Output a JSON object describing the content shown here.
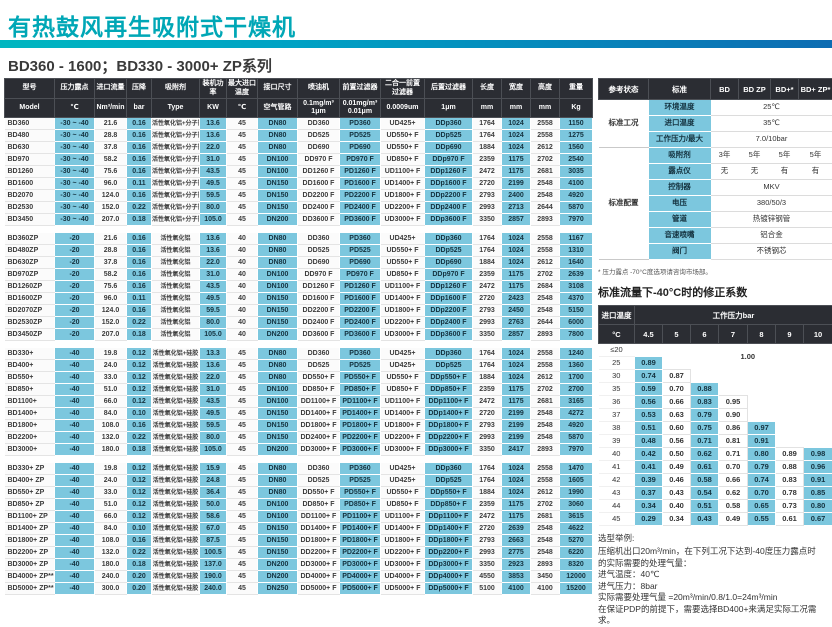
{
  "title": "有热鼓风再生吸附式干燥机",
  "subtitle": "BD360 - 1600；BD330 - 3000+ ZP系列",
  "colors": {
    "accent_teal": "#00a7b6",
    "header_dark": "#2b2d33",
    "cell_blue": "#7cc7de"
  },
  "spec_table": {
    "headers": [
      "型号",
      "压力露点",
      "进口流量",
      "压降",
      "吸附剂",
      "装机功率",
      "最大进口温度",
      "接口尺寸",
      "喷油机",
      "前置过滤器",
      "二合一前置过滤器",
      "后置过滤器",
      "长度",
      "宽度",
      "高度",
      "重量"
    ],
    "units": [
      "Model",
      "℃",
      "Nm³/min",
      "bar",
      "Type",
      "KW",
      "℃",
      "空气管路",
      "0.1mg/m³\n1μm",
      "0.01mg/m³\n0.01μm",
      "0.0009um",
      "1μm",
      "mm",
      "mm",
      "mm",
      "Kg"
    ],
    "groups": [
      {
        "name": "BD",
        "rows": [
          [
            "BD360",
            "-30 ~ -40",
            "21.6",
            "0.16",
            "活性氧化铝+分子筛",
            "13.6",
            "45",
            "DN80",
            "DD360",
            "PD360",
            "UD425+",
            "DDp360",
            "1764",
            "1024",
            "2558",
            "1150"
          ],
          [
            "BD480",
            "-30 ~ -40",
            "28.8",
            "0.16",
            "活性氧化铝+分子筛",
            "13.6",
            "45",
            "DN80",
            "DD525",
            "PD525",
            "UD550+ F",
            "DDp525",
            "1764",
            "1024",
            "2558",
            "1275"
          ],
          [
            "BD630",
            "-30 ~ -40",
            "37.8",
            "0.16",
            "活性氧化铝+分子筛",
            "22.0",
            "45",
            "DN80",
            "DD690",
            "PD690",
            "UD550+ F",
            "DDp690",
            "1884",
            "1024",
            "2612",
            "1560"
          ],
          [
            "BD970",
            "-30 ~ -40",
            "58.2",
            "0.16",
            "活性氧化铝+分子筛",
            "31.0",
            "45",
            "DN100",
            "DD970 F",
            "PD970 F",
            "UD850+ F",
            "DDp970 F",
            "2359",
            "1175",
            "2702",
            "2540"
          ],
          [
            "BD1260",
            "-30 ~ -40",
            "75.6",
            "0.16",
            "活性氧化铝+分子筛",
            "43.5",
            "45",
            "DN100",
            "DD1260 F",
            "PD1260 F",
            "UD1100+ F",
            "DDp1260 F",
            "2472",
            "1175",
            "2681",
            "3035"
          ],
          [
            "BD1600",
            "-30 ~ -40",
            "96.0",
            "0.11",
            "活性氧化铝+分子筛",
            "49.5",
            "45",
            "DN150",
            "DD1600 F",
            "PD1600 F",
            "UD1400+ F",
            "DDp1600 F",
            "2720",
            "2199",
            "2548",
            "4100"
          ],
          [
            "BD2070",
            "-30 ~ -40",
            "124.0",
            "0.16",
            "活性氧化铝+分子筛",
            "59.5",
            "45",
            "DN150",
            "DD2200 F",
            "PD2200 F",
            "UD1800+ F",
            "DDp2200 F",
            "2793",
            "2400",
            "2548",
            "4920"
          ],
          [
            "BD2530",
            "-30 ~ -40",
            "152.0",
            "0.22",
            "活性氧化铝+分子筛",
            "80.0",
            "45",
            "DN150",
            "DD2400 F",
            "PD2400 F",
            "UD2200+ F",
            "DDp2400 F",
            "2993",
            "2713",
            "2644",
            "5870"
          ],
          [
            "BD3450",
            "-30 ~ -40",
            "207.0",
            "0.18",
            "活性氧化铝+分子筛",
            "105.0",
            "45",
            "DN200",
            "DD3600 F",
            "PD3600 F",
            "UD3000+ F",
            "DDp3600 F",
            "3350",
            "2857",
            "2893",
            "7970"
          ]
        ]
      },
      {
        "name": "BD ZP",
        "rows": [
          [
            "BD360ZP",
            "-20",
            "21.6",
            "0.16",
            "活性氧化铝",
            "13.6",
            "40",
            "DN80",
            "DD360",
            "PD360",
            "UD425+",
            "DDp360",
            "1764",
            "1024",
            "2558",
            "1167"
          ],
          [
            "BD480ZP",
            "-20",
            "28.8",
            "0.16",
            "活性氧化铝",
            "13.6",
            "40",
            "DN80",
            "DD525",
            "PD525",
            "UD550+ F",
            "DDp525",
            "1764",
            "1024",
            "2558",
            "1310"
          ],
          [
            "BD630ZP",
            "-20",
            "37.8",
            "0.16",
            "活性氧化铝",
            "22.0",
            "40",
            "DN80",
            "DD690",
            "PD690",
            "UD550+ F",
            "DDp690",
            "1884",
            "1024",
            "2612",
            "1640"
          ],
          [
            "BD970ZP",
            "-20",
            "58.2",
            "0.16",
            "活性氧化铝",
            "31.0",
            "40",
            "DN100",
            "DD970 F",
            "PD970 F",
            "UD850+ F",
            "DDp970 F",
            "2359",
            "1175",
            "2702",
            "2639"
          ],
          [
            "BD1260ZP",
            "-20",
            "75.6",
            "0.16",
            "活性氧化铝",
            "43.5",
            "40",
            "DN100",
            "DD1260 F",
            "PD1260 F",
            "UD1100+ F",
            "DDp1260 F",
            "2472",
            "1175",
            "2684",
            "3108"
          ],
          [
            "BD1600ZP",
            "-20",
            "96.0",
            "0.11",
            "活性氧化铝",
            "49.5",
            "40",
            "DN150",
            "DD1600 F",
            "PD1600 F",
            "UD1400+ F",
            "DDp1600 F",
            "2720",
            "2423",
            "2548",
            "4370"
          ],
          [
            "BD2070ZP",
            "-20",
            "124.0",
            "0.16",
            "活性氧化铝",
            "59.5",
            "40",
            "DN150",
            "DD2200 F",
            "PD2200 F",
            "UD1800+ F",
            "DDp2200 F",
            "2793",
            "2450",
            "2548",
            "5150"
          ],
          [
            "BD2530ZP",
            "-20",
            "152.0",
            "0.22",
            "活性氧化铝",
            "80.0",
            "40",
            "DN150",
            "DD2400 F",
            "PD2400 F",
            "UD2200+ F",
            "DDp2400 F",
            "2993",
            "2763",
            "2644",
            "6000"
          ],
          [
            "BD3450ZP",
            "-20",
            "207.0",
            "0.18",
            "活性氧化铝",
            "105.0",
            "40",
            "DN200",
            "DD3600 F",
            "PD3600 F",
            "UD3000+ F",
            "DDp3600 F",
            "3350",
            "2857",
            "2893",
            "7800"
          ]
        ]
      },
      {
        "name": "BD+",
        "rows": [
          [
            "BD330+",
            "-40",
            "19.8",
            "0.12",
            "活性氧化铝+硅胶",
            "13.3",
            "45",
            "DN80",
            "DD360",
            "PD360",
            "UD425+",
            "DDp360",
            "1764",
            "1024",
            "2558",
            "1240"
          ],
          [
            "BD400+",
            "-40",
            "24.0",
            "0.12",
            "活性氧化铝+硅胶",
            "13.6",
            "45",
            "DN80",
            "DD525",
            "PD525",
            "UD425+",
            "DDp525",
            "1764",
            "1024",
            "2558",
            "1360"
          ],
          [
            "BD550+",
            "-40",
            "33.0",
            "0.12",
            "活性氧化铝+硅胶",
            "22.0",
            "45",
            "DN80",
            "DD550+ F",
            "PD550+ F",
            "UD550+ F",
            "DDp550+ F",
            "1884",
            "1024",
            "2612",
            "1700"
          ],
          [
            "BD850+",
            "-40",
            "51.0",
            "0.12",
            "活性氧化铝+硅胶",
            "31.0",
            "45",
            "DN100",
            "DD850+ F",
            "PD850+ F",
            "UD850+ F",
            "DDp850+ F",
            "2359",
            "1175",
            "2702",
            "2700"
          ],
          [
            "BD1100+",
            "-40",
            "66.0",
            "0.12",
            "活性氧化铝+硅胶",
            "43.5",
            "45",
            "DN100",
            "DD1100+ F",
            "PD1100+ F",
            "UD1100+ F",
            "DDp1100+ F",
            "2472",
            "1175",
            "2681",
            "3165"
          ],
          [
            "BD1400+",
            "-40",
            "84.0",
            "0.10",
            "活性氧化铝+硅胶",
            "49.5",
            "45",
            "DN150",
            "DD1400+ F",
            "PD1400+ F",
            "UD1400+ F",
            "DDp1400+ F",
            "2720",
            "2199",
            "2548",
            "4272"
          ],
          [
            "BD1800+",
            "-40",
            "108.0",
            "0.16",
            "活性氧化铝+硅胶",
            "59.5",
            "45",
            "DN150",
            "DD1800+ F",
            "PD1800+ F",
            "UD1800+ F",
            "DDp1800+ F",
            "2793",
            "2199",
            "2548",
            "4920"
          ],
          [
            "BD2200+",
            "-40",
            "132.0",
            "0.22",
            "活性氧化铝+硅胶",
            "80.0",
            "45",
            "DN150",
            "DD2400+ F",
            "PD2200+ F",
            "UD2200+ F",
            "DDp2200+ F",
            "2993",
            "2199",
            "2548",
            "5870"
          ],
          [
            "BD3000+",
            "-40",
            "180.0",
            "0.18",
            "活性氧化铝+硅胶",
            "105.0",
            "45",
            "DN200",
            "DD3000+ F",
            "PD3000+ F",
            "UD3000+ F",
            "DDp3000+ F",
            "3350",
            "2417",
            "2893",
            "7970"
          ]
        ]
      },
      {
        "name": "BD+ ZP",
        "rows": [
          [
            "BD330+ ZP",
            "-40",
            "19.8",
            "0.12",
            "活性氧化铝+硅胶",
            "15.9",
            "45",
            "DN80",
            "DD360",
            "PD360",
            "UD425+",
            "DDp360",
            "1764",
            "1024",
            "2558",
            "1470"
          ],
          [
            "BD400+ ZP",
            "-40",
            "24.0",
            "0.12",
            "活性氧化铝+硅胶",
            "24.8",
            "45",
            "DN80",
            "DD525",
            "PD525",
            "UD425+",
            "DDp525",
            "1764",
            "1024",
            "2558",
            "1605"
          ],
          [
            "BD550+ ZP",
            "-40",
            "33.0",
            "0.12",
            "活性氧化铝+硅胶",
            "36.4",
            "45",
            "DN80",
            "DD550+ F",
            "PD550+ F",
            "UD550+ F",
            "DDp550+ F",
            "1884",
            "1024",
            "2612",
            "1990"
          ],
          [
            "BD850+ ZP",
            "-40",
            "51.0",
            "0.12",
            "活性氧化铝+硅胶",
            "50.0",
            "45",
            "DN100",
            "DD850+ F",
            "PD850+ F",
            "UD850+ F",
            "DDp850+ F",
            "2359",
            "1175",
            "2702",
            "3060"
          ],
          [
            "BD1100+ ZP",
            "-40",
            "66.0",
            "0.12",
            "活性氧化铝+硅胶",
            "58.6",
            "45",
            "DN100",
            "DD1100+ F",
            "PD1100+ F",
            "UD1100+ F",
            "DDp1100+ F",
            "2472",
            "1175",
            "2681",
            "3615"
          ],
          [
            "BD1400+ ZP",
            "-40",
            "84.0",
            "0.10",
            "活性氧化铝+硅胶",
            "67.0",
            "45",
            "DN150",
            "DD1400+ F",
            "PD1400+ F",
            "UD1400+ F",
            "DDp1400+ F",
            "2720",
            "2639",
            "2548",
            "4622"
          ],
          [
            "BD1800+ ZP",
            "-40",
            "108.0",
            "0.16",
            "活性氧化铝+硅胶",
            "87.5",
            "45",
            "DN150",
            "DD1800+ F",
            "PD1800+ F",
            "UD1800+ F",
            "DDp1800+ F",
            "2793",
            "2663",
            "2548",
            "5270"
          ],
          [
            "BD2200+ ZP",
            "-40",
            "132.0",
            "0.22",
            "活性氧化铝+硅胶",
            "100.5",
            "45",
            "DN150",
            "DD2200+ F",
            "PD2200+ F",
            "UD2200+ F",
            "DDp2200+ F",
            "2993",
            "2775",
            "2548",
            "6220"
          ],
          [
            "BD3000+ ZP",
            "-40",
            "180.0",
            "0.18",
            "活性氧化铝+硅胶",
            "137.0",
            "45",
            "DN200",
            "DD3000+ F",
            "PD3000+ F",
            "UD3000+ F",
            "DDp3000+ F",
            "3350",
            "2923",
            "2893",
            "8320"
          ],
          [
            "BD4000+ ZP**",
            "-40",
            "240.0",
            "0.20",
            "活性氧化铝+硅胶",
            "190.0",
            "45",
            "DN200",
            "DD4000+ F",
            "PD4000+ F",
            "UD4000+ F",
            "DDp4000+ F",
            "4550",
            "3853",
            "3450",
            "12000"
          ],
          [
            "BD5000+ ZP**",
            "-40",
            "300.0",
            "0.20",
            "活性氧化铝+硅胶",
            "240.0",
            "45",
            "DN250",
            "DD5000+ F",
            "PD5000+ F",
            "UD5000+ F",
            "DDp5000+ F",
            "5100",
            "4100",
            "4100",
            "15200"
          ]
        ]
      }
    ]
  },
  "reference": {
    "corner": "参考状态",
    "col_headers": [
      "标准",
      "BD",
      "BD ZP",
      "BD+*",
      "BD+ ZP*"
    ],
    "sections": [
      {
        "label": "标准工况",
        "rows": [
          {
            "name": "环境温度",
            "values": [
              "25℃"
            ]
          },
          {
            "name": "进口温度",
            "values": [
              "35℃"
            ]
          },
          {
            "name": "工作压力/最大",
            "values": [
              "7.0/10bar"
            ]
          }
        ]
      },
      {
        "label": "标准配置",
        "rows": [
          {
            "name": "吸附剂",
            "values": [
              "3年",
              "5年",
              "5年",
              "5年"
            ]
          },
          {
            "name": "露点仪",
            "values": [
              "无",
              "无",
              "有",
              "有"
            ]
          },
          {
            "name": "控制器",
            "values": [
              "MKV"
            ]
          },
          {
            "name": "电压",
            "values": [
              "380/50/3"
            ]
          },
          {
            "name": "管道",
            "values": [
              "热镀锌钢管"
            ]
          },
          {
            "name": "音速喷嘴",
            "values": [
              "铝合金"
            ]
          },
          {
            "name": "阀门",
            "values": [
              "不锈钢芯"
            ]
          }
        ]
      }
    ],
    "note": "* 压力露点 -70°C度选项请咨询市场部。"
  },
  "correction": {
    "title": "标准流量下-40°C时的修正系数",
    "row_header": "进口温度",
    "col_header": "工作压力bar",
    "unit": "°C",
    "pressures": [
      "4.5",
      "5",
      "6",
      "7",
      "8",
      "9",
      "10"
    ],
    "full_value_label": "1.00",
    "rows": [
      {
        "temp": "≤20",
        "values": [
          null,
          null,
          null,
          null,
          null,
          null,
          null
        ]
      },
      {
        "temp": "25",
        "values": [
          "0.89",
          null,
          null,
          null,
          null,
          null,
          null
        ]
      },
      {
        "temp": "30",
        "values": [
          "0.74",
          "0.87",
          null,
          null,
          null,
          null,
          null
        ]
      },
      {
        "temp": "35",
        "values": [
          "0.59",
          "0.70",
          "0.88",
          null,
          null,
          null,
          null
        ]
      },
      {
        "temp": "36",
        "values": [
          "0.56",
          "0.66",
          "0.83",
          "0.95",
          null,
          null,
          null
        ]
      },
      {
        "temp": "37",
        "values": [
          "0.53",
          "0.63",
          "0.79",
          "0.90",
          null,
          null,
          null
        ]
      },
      {
        "temp": "38",
        "values": [
          "0.51",
          "0.60",
          "0.75",
          "0.86",
          "0.97",
          null,
          null
        ]
      },
      {
        "temp": "39",
        "values": [
          "0.48",
          "0.56",
          "0.71",
          "0.81",
          "0.91",
          null,
          null
        ]
      },
      {
        "temp": "40",
        "values": [
          "0.42",
          "0.50",
          "0.62",
          "0.71",
          "0.80",
          "0.89",
          "0.98"
        ]
      },
      {
        "temp": "41",
        "values": [
          "0.41",
          "0.49",
          "0.61",
          "0.70",
          "0.79",
          "0.88",
          "0.96"
        ]
      },
      {
        "temp": "42",
        "values": [
          "0.39",
          "0.46",
          "0.58",
          "0.66",
          "0.74",
          "0.83",
          "0.91"
        ]
      },
      {
        "temp": "43",
        "values": [
          "0.37",
          "0.43",
          "0.54",
          "0.62",
          "0.70",
          "0.78",
          "0.85"
        ]
      },
      {
        "temp": "44",
        "values": [
          "0.34",
          "0.40",
          "0.51",
          "0.58",
          "0.65",
          "0.73",
          "0.80"
        ]
      },
      {
        "temp": "45",
        "values": [
          "0.29",
          "0.34",
          "0.43",
          "0.49",
          "0.55",
          "0.61",
          "0.67"
        ]
      }
    ]
  },
  "example": {
    "title": "选型举例:",
    "lines": [
      "压缩机出口20m³/min，在下列工况下达到-40度压力露点时",
      "的实际需要的处理气量：",
      "进气温度：40℃",
      "进气压力：8bar",
      "实际需要处理气量 =20m³/min/0.8/1.0=24m³/min",
      "在保证PDP的前提下，需要选择BD400+来满足实际工况需求。"
    ]
  }
}
